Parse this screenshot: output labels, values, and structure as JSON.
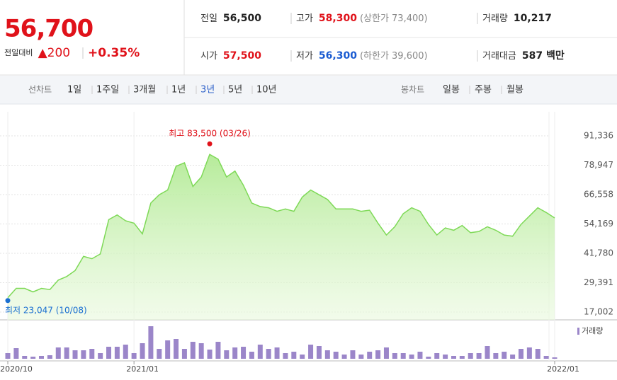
{
  "quote": {
    "price": "56,700",
    "change_label": "전일대비",
    "change": "▲200",
    "change_rate": "+0.35%",
    "color": "#e0121a"
  },
  "stats": [
    [
      {
        "label": "전일",
        "value": "56,500",
        "color": "#222222"
      },
      {
        "label": "고가",
        "value": "58,300",
        "extra": "(상한가 73,400)",
        "color": "#e0121a"
      },
      {
        "label": "거래량",
        "value": "10,217",
        "color": "#222222"
      }
    ],
    [
      {
        "label": "시가",
        "value": "57,500",
        "color": "#e0121a"
      },
      {
        "label": "저가",
        "value": "56,300",
        "extra": "(하한가 39,600)",
        "color": "#1a5bd1"
      },
      {
        "label": "거래대금",
        "value": "587 백만",
        "color": "#222222"
      }
    ]
  ],
  "tabs": {
    "line": {
      "label": "선차트",
      "items": [
        "1일",
        "1주일",
        "3개월",
        "1년",
        "3년",
        "5년",
        "10년"
      ],
      "selected_index": 4
    },
    "candle": {
      "label": "봉차트",
      "items": [
        "일봉",
        "주봉",
        "월봉"
      ]
    }
  },
  "chart_data": [
    {
      "type": "line",
      "categories": [
        "2020/10",
        null,
        null,
        null,
        null,
        null,
        null,
        null,
        null,
        null,
        null,
        null,
        null,
        null,
        null,
        "2021/01",
        null,
        null,
        null,
        null,
        null,
        null,
        null,
        null,
        null,
        null,
        null,
        null,
        null,
        null,
        null,
        null,
        null,
        null,
        null,
        null,
        null,
        null,
        null,
        null,
        null,
        null,
        null,
        null,
        null,
        null,
        null,
        null,
        null,
        null,
        null,
        null,
        null,
        null,
        null,
        null,
        null,
        null,
        null,
        null,
        null,
        null,
        null,
        null,
        null,
        "2022/01"
      ],
      "values": [
        23047,
        27000,
        27000,
        25500,
        27000,
        26500,
        30500,
        32000,
        34500,
        40500,
        39500,
        41500,
        56000,
        58000,
        55500,
        54500,
        50000,
        63000,
        66500,
        68500,
        78500,
        80000,
        70000,
        74000,
        83500,
        81500,
        74000,
        76500,
        70500,
        63000,
        61500,
        61000,
        59500,
        60500,
        59500,
        65500,
        68500,
        66500,
        64500,
        60500,
        60500,
        60500,
        59500,
        60000,
        54500,
        49500,
        53000,
        58500,
        61000,
        59500,
        54000,
        49500,
        52500,
        51500,
        53500,
        50500,
        51000,
        53000,
        51500,
        49500,
        49000,
        54000,
        57500,
        61000,
        59000,
        56700
      ],
      "color": "#7ed957",
      "ylim": [
        17002,
        91336
      ],
      "yticks": [
        {
          "value": 17002,
          "label": "17,002"
        },
        {
          "value": 29391,
          "label": "29,391"
        },
        {
          "value": 41780,
          "label": "41,780"
        },
        {
          "value": 54169,
          "label": "54,169"
        },
        {
          "value": 66558,
          "label": "66,558"
        },
        {
          "value": 78947,
          "label": "78,947"
        },
        {
          "value": 91336,
          "label": "91,336"
        }
      ],
      "grid": true,
      "annotations": {
        "high": {
          "text": "최고 83,500 (03/26)",
          "color": "#e0121a"
        },
        "low": {
          "text": "최저 23,047 (10/08)",
          "color": "#1a6fd1"
        }
      }
    },
    {
      "type": "bar",
      "series": [
        {
          "name": "거래량",
          "color": "#9b86c9",
          "values": [
            8,
            15,
            4,
            3,
            4,
            5,
            16,
            16,
            12,
            12,
            14,
            8,
            17,
            17,
            20,
            8,
            22,
            46,
            14,
            26,
            28,
            14,
            24,
            22,
            13,
            24,
            12,
            16,
            17,
            10,
            20,
            14,
            16,
            8,
            10,
            6,
            20,
            18,
            12,
            10,
            6,
            12,
            6,
            10,
            12,
            16,
            8,
            8,
            6,
            10,
            3,
            8,
            6,
            4,
            4,
            8,
            8,
            18,
            8,
            10,
            6,
            14,
            16,
            14,
            4,
            2
          ]
        }
      ]
    }
  ]
}
